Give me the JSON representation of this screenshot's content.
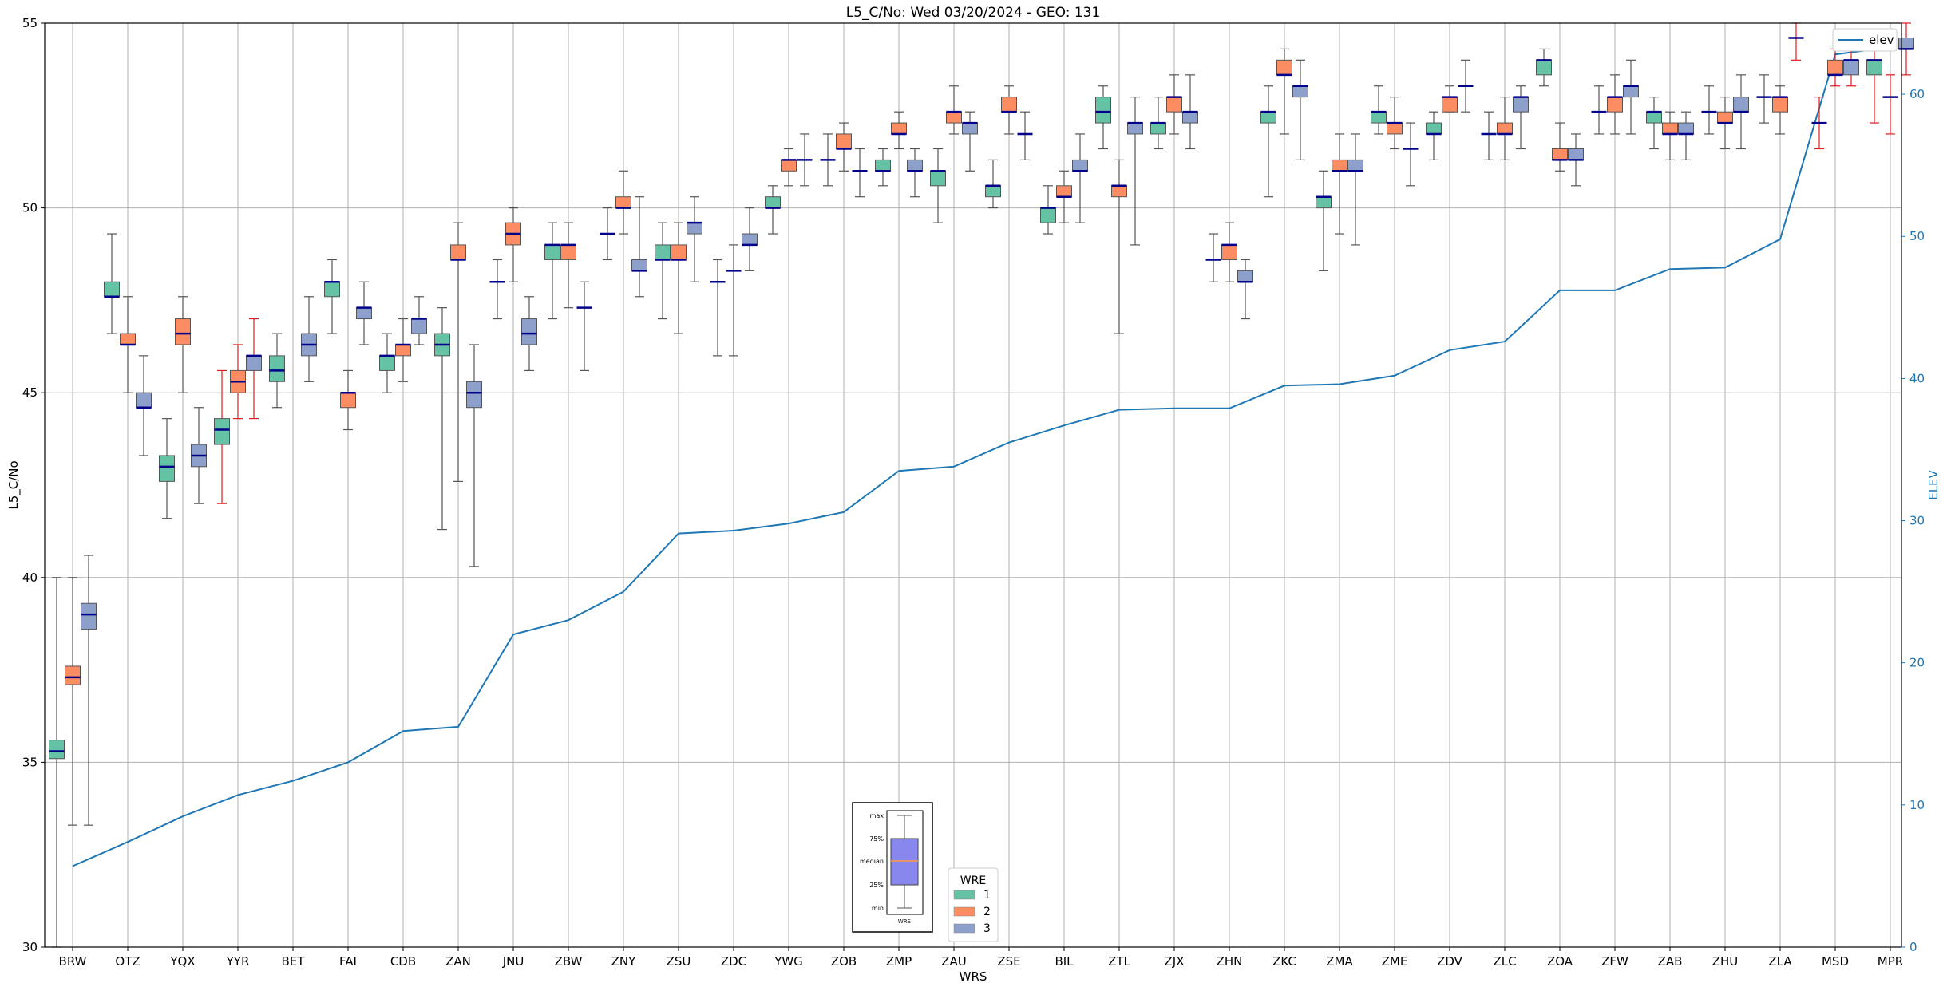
{
  "chart_data": {
    "type": "box",
    "title": "L5_C/No: Wed 03/20/2024 - GEO: 131",
    "xlabel": "WRS",
    "ylabel": "L5_C/No",
    "y2label": "ELEV",
    "ylim": [
      30,
      55
    ],
    "y2lim": [
      0,
      65
    ],
    "yticks": [
      "30",
      "35",
      "40",
      "45",
      "50",
      "55"
    ],
    "y2ticks": [
      "0",
      "10",
      "20",
      "30",
      "40",
      "50",
      "60"
    ],
    "grid": true,
    "categories": [
      "BRW",
      "OTZ",
      "YQX",
      "YYR",
      "BET",
      "FAI",
      "CDB",
      "ZAN",
      "JNU",
      "ZBW",
      "ZNY",
      "ZSU",
      "ZDC",
      "YWG",
      "ZOB",
      "ZMP",
      "ZAU",
      "ZSE",
      "BIL",
      "ZTL",
      "ZJX",
      "ZHN",
      "ZKC",
      "ZMA",
      "ZME",
      "ZDV",
      "ZLC",
      "ZOA",
      "ZFW",
      "ZAB",
      "ZHU",
      "ZLA",
      "MSD",
      "MPR"
    ],
    "colors": {
      "1": "#66c2a5",
      "2": "#fc8d62",
      "3": "#8da0cb",
      "elev": "#1f77b4",
      "median": "#00008b",
      "red_whisker": "#e31a1c",
      "whisker": "#555555"
    },
    "legend_wre": {
      "title": "WRE",
      "items": [
        "1",
        "2",
        "3"
      ],
      "placement": "bottom-center"
    },
    "legend_elev": {
      "label": "elev",
      "placement": "top-right"
    },
    "key_box": {
      "labels": [
        "max",
        "75%",
        "median",
        "25%",
        "min"
      ],
      "xlabel": "WRS"
    },
    "boxes": [
      {
        "cat": "BRW",
        "wre": 1,
        "min": 30,
        "q1": 35.1,
        "med": 35.3,
        "q3": 35.6,
        "max": 40
      },
      {
        "cat": "BRW",
        "wre": 2,
        "min": 33.3,
        "q1": 37.1,
        "med": 37.3,
        "q3": 37.6,
        "max": 40
      },
      {
        "cat": "BRW",
        "wre": 3,
        "min": 33.3,
        "q1": 38.6,
        "med": 39.0,
        "q3": 39.3,
        "max": 40.6
      },
      {
        "cat": "OTZ",
        "wre": 1,
        "min": 46.6,
        "q1": 47.6,
        "med": 47.6,
        "q3": 48.0,
        "max": 49.3
      },
      {
        "cat": "OTZ",
        "wre": 2,
        "min": 45.0,
        "q1": 46.3,
        "med": 46.3,
        "q3": 46.6,
        "max": 47.6
      },
      {
        "cat": "OTZ",
        "wre": 3,
        "min": 43.3,
        "q1": 44.6,
        "med": 44.6,
        "q3": 45.0,
        "max": 46.0
      },
      {
        "cat": "YQX",
        "wre": 1,
        "min": 41.6,
        "q1": 42.6,
        "med": 43.0,
        "q3": 43.3,
        "max": 44.3
      },
      {
        "cat": "YQX",
        "wre": 2,
        "min": 45.0,
        "q1": 46.3,
        "med": 46.6,
        "q3": 47.0,
        "max": 47.6
      },
      {
        "cat": "YQX",
        "wre": 3,
        "min": 42.0,
        "q1": 43.0,
        "med": 43.3,
        "q3": 43.6,
        "max": 44.6
      },
      {
        "cat": "YYR",
        "wre": 1,
        "min": 42.0,
        "q1": 43.6,
        "med": 44.0,
        "q3": 44.3,
        "max": 45.6,
        "red": true
      },
      {
        "cat": "YYR",
        "wre": 2,
        "min": 44.3,
        "q1": 45.0,
        "med": 45.3,
        "q3": 45.6,
        "max": 46.3,
        "red": true
      },
      {
        "cat": "YYR",
        "wre": 3,
        "min": 44.3,
        "q1": 45.6,
        "med": 46.0,
        "q3": 46.0,
        "max": 47.0,
        "red": true
      },
      {
        "cat": "BET",
        "wre": 1,
        "min": 44.6,
        "q1": 45.3,
        "med": 45.6,
        "q3": 46.0,
        "max": 46.6
      },
      {
        "cat": "BET",
        "wre": 3,
        "min": 45.3,
        "q1": 46.0,
        "med": 46.3,
        "q3": 46.6,
        "max": 47.6
      },
      {
        "cat": "FAI",
        "wre": 1,
        "min": 46.6,
        "q1": 47.6,
        "med": 48.0,
        "q3": 48.0,
        "max": 48.6
      },
      {
        "cat": "FAI",
        "wre": 2,
        "min": 44.0,
        "q1": 44.6,
        "med": 45.0,
        "q3": 45.0,
        "max": 45.6
      },
      {
        "cat": "FAI",
        "wre": 3,
        "min": 46.3,
        "q1": 47.0,
        "med": 47.3,
        "q3": 47.3,
        "max": 48.0
      },
      {
        "cat": "CDB",
        "wre": 1,
        "min": 45.0,
        "q1": 45.6,
        "med": 46.0,
        "q3": 46.0,
        "max": 46.6
      },
      {
        "cat": "CDB",
        "wre": 2,
        "min": 45.3,
        "q1": 46.0,
        "med": 46.3,
        "q3": 46.3,
        "max": 47.0
      },
      {
        "cat": "CDB",
        "wre": 3,
        "min": 46.3,
        "q1": 46.6,
        "med": 47.0,
        "q3": 47.0,
        "max": 47.6
      },
      {
        "cat": "ZAN",
        "wre": 1,
        "min": 41.3,
        "q1": 46.0,
        "med": 46.3,
        "q3": 46.6,
        "max": 47.3
      },
      {
        "cat": "ZAN",
        "wre": 2,
        "min": 42.6,
        "q1": 48.6,
        "med": 48.6,
        "q3": 49.0,
        "max": 49.6
      },
      {
        "cat": "ZAN",
        "wre": 3,
        "min": 40.3,
        "q1": 44.6,
        "med": 45.0,
        "q3": 45.3,
        "max": 46.3
      },
      {
        "cat": "JNU",
        "wre": 1,
        "min": 47.0,
        "q1": 48.0,
        "med": 48.0,
        "q3": 48.0,
        "max": 48.6
      },
      {
        "cat": "JNU",
        "wre": 2,
        "min": 48.0,
        "q1": 49.0,
        "med": 49.3,
        "q3": 49.6,
        "max": 50.0
      },
      {
        "cat": "JNU",
        "wre": 3,
        "min": 45.6,
        "q1": 46.3,
        "med": 46.6,
        "q3": 47.0,
        "max": 47.6
      },
      {
        "cat": "ZBW",
        "wre": 1,
        "min": 47.0,
        "q1": 48.6,
        "med": 49.0,
        "q3": 49.0,
        "max": 49.6
      },
      {
        "cat": "ZBW",
        "wre": 2,
        "min": 47.3,
        "q1": 48.6,
        "med": 49.0,
        "q3": 49.0,
        "max": 49.6
      },
      {
        "cat": "ZBW",
        "wre": 3,
        "min": 45.6,
        "q1": 47.3,
        "med": 47.3,
        "q3": 47.3,
        "max": 48.0
      },
      {
        "cat": "ZNY",
        "wre": 1,
        "min": 48.6,
        "q1": 49.3,
        "med": 49.3,
        "q3": 49.3,
        "max": 50.0
      },
      {
        "cat": "ZNY",
        "wre": 2,
        "min": 49.3,
        "q1": 50.0,
        "med": 50.0,
        "q3": 50.3,
        "max": 51.0
      },
      {
        "cat": "ZNY",
        "wre": 3,
        "min": 47.6,
        "q1": 48.3,
        "med": 48.3,
        "q3": 48.6,
        "max": 50.3
      },
      {
        "cat": "ZSU",
        "wre": 1,
        "min": 47.0,
        "q1": 48.6,
        "med": 48.6,
        "q3": 49.0,
        "max": 49.6
      },
      {
        "cat": "ZSU",
        "wre": 2,
        "min": 46.6,
        "q1": 48.6,
        "med": 48.6,
        "q3": 49.0,
        "max": 49.6
      },
      {
        "cat": "ZSU",
        "wre": 3,
        "min": 48.0,
        "q1": 49.3,
        "med": 49.6,
        "q3": 49.6,
        "max": 50.3
      },
      {
        "cat": "ZDC",
        "wre": 1,
        "min": 46.0,
        "q1": 48.0,
        "med": 48.0,
        "q3": 48.0,
        "max": 48.6
      },
      {
        "cat": "ZDC",
        "wre": 2,
        "min": 46.0,
        "q1": 48.3,
        "med": 48.3,
        "q3": 48.3,
        "max": 49.0
      },
      {
        "cat": "ZDC",
        "wre": 3,
        "min": 48.3,
        "q1": 49.0,
        "med": 49.0,
        "q3": 49.3,
        "max": 50.0
      },
      {
        "cat": "YWG",
        "wre": 1,
        "min": 49.3,
        "q1": 50.0,
        "med": 50.0,
        "q3": 50.3,
        "max": 50.6
      },
      {
        "cat": "YWG",
        "wre": 2,
        "min": 50.6,
        "q1": 51.0,
        "med": 51.3,
        "q3": 51.3,
        "max": 51.6
      },
      {
        "cat": "YWG",
        "wre": 3,
        "min": 50.6,
        "q1": 51.3,
        "med": 51.3,
        "q3": 51.3,
        "max": 52.0
      },
      {
        "cat": "ZOB",
        "wre": 1,
        "min": 50.6,
        "q1": 51.3,
        "med": 51.3,
        "q3": 51.3,
        "max": 52.0
      },
      {
        "cat": "ZOB",
        "wre": 2,
        "min": 51.0,
        "q1": 51.6,
        "med": 51.6,
        "q3": 52.0,
        "max": 52.3
      },
      {
        "cat": "ZOB",
        "wre": 3,
        "min": 50.3,
        "q1": 51.0,
        "med": 51.0,
        "q3": 51.0,
        "max": 51.6
      },
      {
        "cat": "ZMP",
        "wre": 1,
        "min": 50.6,
        "q1": 51.0,
        "med": 51.0,
        "q3": 51.3,
        "max": 51.6
      },
      {
        "cat": "ZMP",
        "wre": 2,
        "min": 51.6,
        "q1": 52.0,
        "med": 52.0,
        "q3": 52.3,
        "max": 52.6
      },
      {
        "cat": "ZMP",
        "wre": 3,
        "min": 50.3,
        "q1": 51.0,
        "med": 51.0,
        "q3": 51.3,
        "max": 51.6
      },
      {
        "cat": "ZAU",
        "wre": 1,
        "min": 49.6,
        "q1": 50.6,
        "med": 51.0,
        "q3": 51.0,
        "max": 51.6
      },
      {
        "cat": "ZAU",
        "wre": 2,
        "min": 52.0,
        "q1": 52.3,
        "med": 52.6,
        "q3": 52.6,
        "max": 53.3
      },
      {
        "cat": "ZAU",
        "wre": 3,
        "min": 51.0,
        "q1": 52.0,
        "med": 52.3,
        "q3": 52.3,
        "max": 52.6
      },
      {
        "cat": "ZSE",
        "wre": 1,
        "min": 50.0,
        "q1": 50.3,
        "med": 50.6,
        "q3": 50.6,
        "max": 51.3
      },
      {
        "cat": "ZSE",
        "wre": 2,
        "min": 52.0,
        "q1": 52.6,
        "med": 52.6,
        "q3": 53.0,
        "max": 53.3
      },
      {
        "cat": "ZSE",
        "wre": 3,
        "min": 51.3,
        "q1": 52.0,
        "med": 52.0,
        "q3": 52.0,
        "max": 52.6
      },
      {
        "cat": "BIL",
        "wre": 1,
        "min": 49.3,
        "q1": 49.6,
        "med": 50.0,
        "q3": 50.0,
        "max": 50.6
      },
      {
        "cat": "BIL",
        "wre": 2,
        "min": 49.6,
        "q1": 50.3,
        "med": 50.3,
        "q3": 50.6,
        "max": 51.0
      },
      {
        "cat": "BIL",
        "wre": 3,
        "min": 49.6,
        "q1": 51.0,
        "med": 51.0,
        "q3": 51.3,
        "max": 52.0
      },
      {
        "cat": "ZTL",
        "wre": 1,
        "min": 51.6,
        "q1": 52.3,
        "med": 52.6,
        "q3": 53.0,
        "max": 53.3
      },
      {
        "cat": "ZTL",
        "wre": 2,
        "min": 46.6,
        "q1": 50.3,
        "med": 50.6,
        "q3": 50.6,
        "max": 51.3
      },
      {
        "cat": "ZTL",
        "wre": 3,
        "min": 49.0,
        "q1": 52.0,
        "med": 52.3,
        "q3": 52.3,
        "max": 53.0
      },
      {
        "cat": "ZJX",
        "wre": 1,
        "min": 51.6,
        "q1": 52.0,
        "med": 52.3,
        "q3": 52.3,
        "max": 53.0
      },
      {
        "cat": "ZJX",
        "wre": 2,
        "min": 52.0,
        "q1": 52.6,
        "med": 53.0,
        "q3": 53.0,
        "max": 53.6
      },
      {
        "cat": "ZJX",
        "wre": 3,
        "min": 51.6,
        "q1": 52.3,
        "med": 52.6,
        "q3": 52.6,
        "max": 53.6
      },
      {
        "cat": "ZHN",
        "wre": 1,
        "min": 48.0,
        "q1": 48.6,
        "med": 48.6,
        "q3": 48.6,
        "max": 49.3
      },
      {
        "cat": "ZHN",
        "wre": 2,
        "min": 48.0,
        "q1": 48.6,
        "med": 49.0,
        "q3": 49.0,
        "max": 49.6
      },
      {
        "cat": "ZHN",
        "wre": 3,
        "min": 47.0,
        "q1": 48.0,
        "med": 48.0,
        "q3": 48.3,
        "max": 48.6
      },
      {
        "cat": "ZKC",
        "wre": 1,
        "min": 50.3,
        "q1": 52.3,
        "med": 52.6,
        "q3": 52.6,
        "max": 53.3
      },
      {
        "cat": "ZKC",
        "wre": 2,
        "min": 52.0,
        "q1": 53.6,
        "med": 53.6,
        "q3": 54.0,
        "max": 54.3
      },
      {
        "cat": "ZKC",
        "wre": 3,
        "min": 51.3,
        "q1": 53.0,
        "med": 53.3,
        "q3": 53.3,
        "max": 54.0
      },
      {
        "cat": "ZMA",
        "wre": 1,
        "min": 48.3,
        "q1": 50.0,
        "med": 50.3,
        "q3": 50.3,
        "max": 51.0
      },
      {
        "cat": "ZMA",
        "wre": 2,
        "min": 49.3,
        "q1": 51.0,
        "med": 51.0,
        "q3": 51.3,
        "max": 52.0
      },
      {
        "cat": "ZMA",
        "wre": 3,
        "min": 49.0,
        "q1": 51.0,
        "med": 51.0,
        "q3": 51.3,
        "max": 52.0
      },
      {
        "cat": "ZME",
        "wre": 1,
        "min": 52.0,
        "q1": 52.3,
        "med": 52.6,
        "q3": 52.6,
        "max": 53.3
      },
      {
        "cat": "ZME",
        "wre": 2,
        "min": 51.6,
        "q1": 52.0,
        "med": 52.3,
        "q3": 52.3,
        "max": 53.0
      },
      {
        "cat": "ZME",
        "wre": 3,
        "min": 50.6,
        "q1": 51.6,
        "med": 51.6,
        "q3": 51.6,
        "max": 52.3
      },
      {
        "cat": "ZDV",
        "wre": 1,
        "min": 51.3,
        "q1": 52.0,
        "med": 52.0,
        "q3": 52.3,
        "max": 52.6
      },
      {
        "cat": "ZDV",
        "wre": 2,
        "min": 52.6,
        "q1": 52.6,
        "med": 53.0,
        "q3": 53.0,
        "max": 53.3
      },
      {
        "cat": "ZDV",
        "wre": 3,
        "min": 52.6,
        "q1": 53.3,
        "med": 53.3,
        "q3": 53.3,
        "max": 54.0
      },
      {
        "cat": "ZLC",
        "wre": 1,
        "min": 51.3,
        "q1": 52.0,
        "med": 52.0,
        "q3": 52.0,
        "max": 52.6
      },
      {
        "cat": "ZLC",
        "wre": 2,
        "min": 51.3,
        "q1": 52.0,
        "med": 52.0,
        "q3": 52.3,
        "max": 53.0
      },
      {
        "cat": "ZLC",
        "wre": 3,
        "min": 51.6,
        "q1": 52.6,
        "med": 53.0,
        "q3": 53.0,
        "max": 53.3
      },
      {
        "cat": "ZOA",
        "wre": 1,
        "min": 53.3,
        "q1": 53.6,
        "med": 54.0,
        "q3": 54.0,
        "max": 54.3
      },
      {
        "cat": "ZOA",
        "wre": 2,
        "min": 51.0,
        "q1": 51.3,
        "med": 51.3,
        "q3": 51.6,
        "max": 52.3
      },
      {
        "cat": "ZOA",
        "wre": 3,
        "min": 50.6,
        "q1": 51.3,
        "med": 51.3,
        "q3": 51.6,
        "max": 52.0
      },
      {
        "cat": "ZFW",
        "wre": 1,
        "min": 52.0,
        "q1": 52.6,
        "med": 52.6,
        "q3": 52.6,
        "max": 53.3
      },
      {
        "cat": "ZFW",
        "wre": 2,
        "min": 52.0,
        "q1": 52.6,
        "med": 53.0,
        "q3": 53.0,
        "max": 53.6
      },
      {
        "cat": "ZFW",
        "wre": 3,
        "min": 52.0,
        "q1": 53.0,
        "med": 53.3,
        "q3": 53.3,
        "max": 54.0
      },
      {
        "cat": "ZAB",
        "wre": 1,
        "min": 51.6,
        "q1": 52.3,
        "med": 52.6,
        "q3": 52.6,
        "max": 53.0
      },
      {
        "cat": "ZAB",
        "wre": 2,
        "min": 51.3,
        "q1": 52.0,
        "med": 52.0,
        "q3": 52.3,
        "max": 52.6
      },
      {
        "cat": "ZAB",
        "wre": 3,
        "min": 51.3,
        "q1": 52.0,
        "med": 52.0,
        "q3": 52.3,
        "max": 52.6
      },
      {
        "cat": "ZHU",
        "wre": 1,
        "min": 52.0,
        "q1": 52.6,
        "med": 52.6,
        "q3": 52.6,
        "max": 53.3
      },
      {
        "cat": "ZHU",
        "wre": 2,
        "min": 51.6,
        "q1": 52.3,
        "med": 52.3,
        "q3": 52.6,
        "max": 53.0
      },
      {
        "cat": "ZHU",
        "wre": 3,
        "min": 51.6,
        "q1": 52.6,
        "med": 52.6,
        "q3": 53.0,
        "max": 53.6
      },
      {
        "cat": "ZLA",
        "wre": 1,
        "min": 52.3,
        "q1": 53.0,
        "med": 53.0,
        "q3": 53.0,
        "max": 53.6
      },
      {
        "cat": "ZLA",
        "wre": 2,
        "min": 52.0,
        "q1": 52.6,
        "med": 53.0,
        "q3": 53.0,
        "max": 53.3
      },
      {
        "cat": "ZLA",
        "wre": 3,
        "min": 54.0,
        "q1": 54.6,
        "med": 54.6,
        "q3": 54.6,
        "max": 55.0,
        "red": true
      },
      {
        "cat": "MSD",
        "wre": 1,
        "min": 51.6,
        "q1": 52.3,
        "med": 52.3,
        "q3": 52.3,
        "max": 53.0,
        "red": true
      },
      {
        "cat": "MSD",
        "wre": 2,
        "min": 53.3,
        "q1": 53.6,
        "med": 53.6,
        "q3": 54.0,
        "max": 54.3,
        "red": true
      },
      {
        "cat": "MSD",
        "wre": 3,
        "min": 53.3,
        "q1": 53.6,
        "med": 54.0,
        "q3": 54.0,
        "max": 54.3,
        "red": true
      },
      {
        "cat": "MPR",
        "wre": 1,
        "min": 52.3,
        "q1": 53.6,
        "med": 54.0,
        "q3": 54.0,
        "max": 54.3,
        "red": true
      },
      {
        "cat": "MPR",
        "wre": 2,
        "min": 52.0,
        "q1": 53.0,
        "med": 53.0,
        "q3": 53.0,
        "max": 53.6,
        "red": true
      },
      {
        "cat": "MPR",
        "wre": 3,
        "min": 53.6,
        "q1": 54.3,
        "med": 54.3,
        "q3": 54.6,
        "max": 55.0,
        "red": true
      }
    ],
    "elev_series": {
      "name": "elev",
      "values": [
        5.7,
        7.4,
        9.2,
        10.7,
        11.7,
        13.0,
        15.2,
        15.5,
        22.0,
        23.0,
        25.0,
        29.1,
        29.3,
        29.8,
        30.6,
        33.5,
        33.8,
        35.5,
        36.7,
        37.8,
        37.9,
        37.9,
        39.5,
        39.6,
        40.2,
        42.0,
        42.6,
        46.2,
        46.2,
        47.7,
        47.8,
        49.8,
        62.8,
        63.3
      ]
    }
  }
}
